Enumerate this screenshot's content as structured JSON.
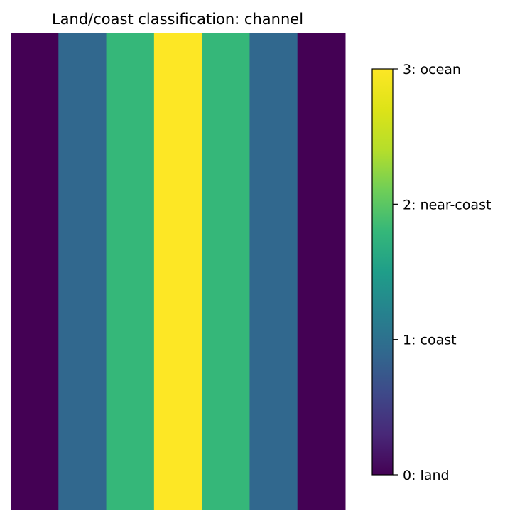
{
  "chart_data": {
    "type": "heatmap",
    "title": "Land/coast classification: channel",
    "columns": 7,
    "rows": [
      [
        0,
        1,
        2,
        3,
        2,
        1,
        0
      ]
    ],
    "colormap": "viridis",
    "vmin": 0,
    "vmax": 3,
    "axes_visible": false,
    "colorbar": {
      "position": "right",
      "ticks": [
        0,
        1,
        2,
        3
      ],
      "tick_labels": [
        "0: land",
        "1: coast",
        "2: near-coast",
        "3: ocean"
      ]
    },
    "colors": {
      "0": "#440154",
      "1": "#31688e",
      "2": "#35b779",
      "3": "#fde725"
    }
  }
}
